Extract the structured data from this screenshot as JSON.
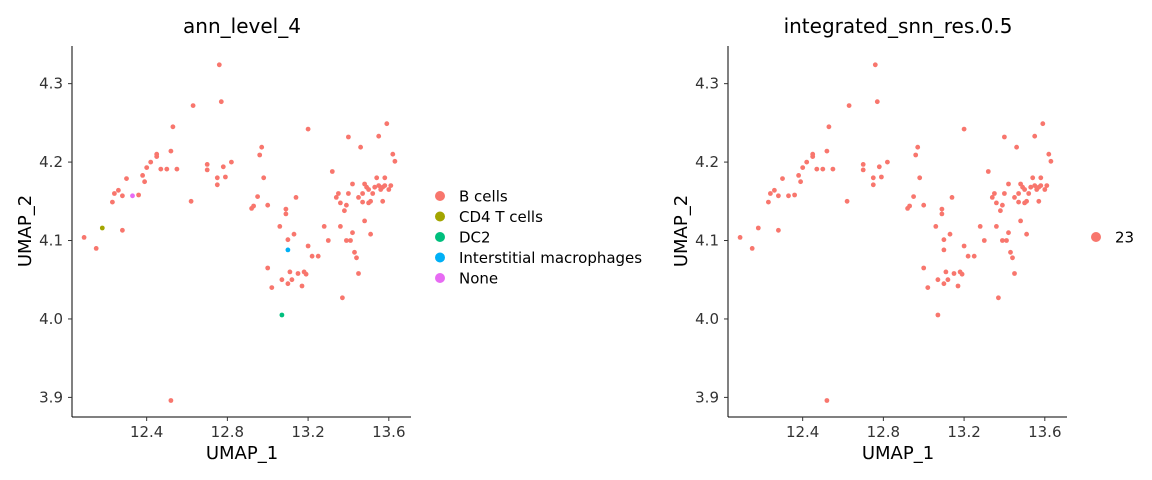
{
  "chart_data": [
    {
      "type": "scatter",
      "title": "ann_level_4",
      "xlabel": "UMAP_1",
      "ylabel": "UMAP_2",
      "xlim": [
        12.03,
        13.71
      ],
      "ylim": [
        3.875,
        4.348
      ],
      "xticks": [
        "12.4",
        "12.8",
        "13.2",
        "13.6"
      ],
      "yticks": [
        "3.9",
        "4.0",
        "4.1",
        "4.2",
        "4.3"
      ],
      "grid": false,
      "legend_position": "right",
      "series": [
        {
          "name": "B cells",
          "color": "#F8766D",
          "points": [
            [
              12.09,
              4.104
            ],
            [
              12.15,
              4.09
            ],
            [
              12.23,
              4.149
            ],
            [
              12.24,
              4.16
            ],
            [
              12.26,
              4.164
            ],
            [
              12.28,
              4.157
            ],
            [
              12.28,
              4.113
            ],
            [
              12.3,
              4.179
            ],
            [
              12.36,
              4.158
            ],
            [
              12.38,
              4.183
            ],
            [
              12.39,
              4.175
            ],
            [
              12.4,
              4.193
            ],
            [
              12.42,
              4.2
            ],
            [
              12.45,
              4.207
            ],
            [
              12.45,
              4.21
            ],
            [
              12.47,
              4.191
            ],
            [
              12.5,
              4.191
            ],
            [
              12.52,
              4.214
            ],
            [
              12.53,
              4.245
            ],
            [
              12.55,
              4.191
            ],
            [
              12.62,
              4.15
            ],
            [
              12.63,
              4.272
            ],
            [
              12.7,
              4.197
            ],
            [
              12.7,
              4.19
            ],
            [
              12.75,
              4.18
            ],
            [
              12.75,
              4.171
            ],
            [
              12.77,
              4.277
            ],
            [
              12.76,
              4.324
            ],
            [
              12.78,
              4.194
            ],
            [
              12.79,
              4.181
            ],
            [
              12.82,
              4.2
            ],
            [
              12.52,
              3.896
            ],
            [
              12.92,
              4.141
            ],
            [
              12.93,
              4.144
            ],
            [
              12.95,
              4.156
            ],
            [
              12.96,
              4.209
            ],
            [
              12.97,
              4.219
            ],
            [
              12.98,
              4.18
            ],
            [
              13.0,
              4.145
            ],
            [
              13.0,
              4.065
            ],
            [
              13.02,
              4.04
            ],
            [
              13.06,
              4.118
            ],
            [
              13.07,
              4.05
            ],
            [
              13.09,
              4.14
            ],
            [
              13.09,
              4.134
            ],
            [
              13.1,
              4.045
            ],
            [
              13.1,
              4.101
            ],
            [
              13.11,
              4.06
            ],
            [
              13.12,
              4.05
            ],
            [
              13.13,
              4.108
            ],
            [
              13.14,
              4.155
            ],
            [
              13.15,
              4.058
            ],
            [
              13.17,
              4.042
            ],
            [
              13.18,
              4.06
            ],
            [
              13.19,
              4.057
            ],
            [
              13.2,
              4.242
            ],
            [
              13.2,
              4.093
            ],
            [
              13.22,
              4.08
            ],
            [
              13.25,
              4.08
            ],
            [
              13.28,
              4.118
            ],
            [
              13.3,
              4.1
            ],
            [
              13.32,
              4.188
            ],
            [
              13.34,
              4.155
            ],
            [
              13.35,
              4.16
            ],
            [
              13.36,
              4.148
            ],
            [
              13.36,
              4.118
            ],
            [
              13.37,
              4.027
            ],
            [
              13.38,
              4.138
            ],
            [
              13.39,
              4.145
            ],
            [
              13.39,
              4.1
            ],
            [
              13.4,
              4.16
            ],
            [
              13.4,
              4.232
            ],
            [
              13.41,
              4.1
            ],
            [
              13.42,
              4.172
            ],
            [
              13.42,
              4.11
            ],
            [
              13.43,
              4.085
            ],
            [
              13.44,
              4.078
            ],
            [
              13.45,
              4.155
            ],
            [
              13.45,
              4.058
            ],
            [
              13.46,
              4.219
            ],
            [
              13.47,
              4.16
            ],
            [
              13.47,
              4.149
            ],
            [
              13.48,
              4.125
            ],
            [
              13.48,
              4.172
            ],
            [
              13.49,
              4.168
            ],
            [
              13.5,
              4.148
            ],
            [
              13.5,
              4.165
            ],
            [
              13.51,
              4.15
            ],
            [
              13.51,
              4.108
            ],
            [
              13.52,
              4.16
            ],
            [
              13.53,
              4.168
            ],
            [
              13.54,
              4.18
            ],
            [
              13.55,
              4.17
            ],
            [
              13.55,
              4.233
            ],
            [
              13.56,
              4.165
            ],
            [
              13.57,
              4.15
            ],
            [
              13.57,
              4.168
            ],
            [
              13.58,
              4.18
            ],
            [
              13.58,
              4.17
            ],
            [
              13.59,
              4.249
            ],
            [
              13.6,
              4.165
            ],
            [
              13.61,
              4.17
            ],
            [
              13.62,
              4.21
            ],
            [
              13.63,
              4.201
            ]
          ]
        },
        {
          "name": "CD4 T cells",
          "color": "#A3A500",
          "points": [
            [
              12.18,
              4.116
            ]
          ]
        },
        {
          "name": "DC2",
          "color": "#00BF7D",
          "points": [
            [
              13.07,
              4.005
            ]
          ]
        },
        {
          "name": "Interstitial macrophages",
          "color": "#00B0F6",
          "points": [
            [
              13.1,
              4.088
            ]
          ]
        },
        {
          "name": "None",
          "color": "#E76BF3",
          "points": [
            [
              12.33,
              4.157
            ]
          ]
        }
      ]
    },
    {
      "type": "scatter",
      "title": "integrated_snn_res.0.5",
      "xlabel": "UMAP_1",
      "ylabel": "UMAP_2",
      "xlim": [
        12.03,
        13.71
      ],
      "ylim": [
        3.875,
        4.348
      ],
      "xticks": [
        "12.4",
        "12.8",
        "13.2",
        "13.6"
      ],
      "yticks": [
        "3.9",
        "4.0",
        "4.1",
        "4.2",
        "4.3"
      ],
      "grid": false,
      "legend_position": "right",
      "series": [
        {
          "name": "23",
          "color": "#F8766D",
          "points": [
            [
              12.09,
              4.104
            ],
            [
              12.15,
              4.09
            ],
            [
              12.23,
              4.149
            ],
            [
              12.24,
              4.16
            ],
            [
              12.26,
              4.164
            ],
            [
              12.28,
              4.157
            ],
            [
              12.28,
              4.113
            ],
            [
              12.3,
              4.179
            ],
            [
              12.36,
              4.158
            ],
            [
              12.38,
              4.183
            ],
            [
              12.39,
              4.175
            ],
            [
              12.4,
              4.193
            ],
            [
              12.42,
              4.2
            ],
            [
              12.45,
              4.207
            ],
            [
              12.45,
              4.21
            ],
            [
              12.47,
              4.191
            ],
            [
              12.5,
              4.191
            ],
            [
              12.52,
              4.214
            ],
            [
              12.53,
              4.245
            ],
            [
              12.55,
              4.191
            ],
            [
              12.62,
              4.15
            ],
            [
              12.63,
              4.272
            ],
            [
              12.7,
              4.197
            ],
            [
              12.7,
              4.19
            ],
            [
              12.75,
              4.18
            ],
            [
              12.75,
              4.171
            ],
            [
              12.77,
              4.277
            ],
            [
              12.76,
              4.324
            ],
            [
              12.78,
              4.194
            ],
            [
              12.79,
              4.181
            ],
            [
              12.82,
              4.2
            ],
            [
              12.52,
              3.896
            ],
            [
              12.92,
              4.141
            ],
            [
              12.93,
              4.144
            ],
            [
              12.95,
              4.156
            ],
            [
              12.96,
              4.209
            ],
            [
              12.97,
              4.219
            ],
            [
              12.98,
              4.18
            ],
            [
              13.0,
              4.145
            ],
            [
              13.0,
              4.065
            ],
            [
              13.02,
              4.04
            ],
            [
              13.06,
              4.118
            ],
            [
              13.07,
              4.05
            ],
            [
              13.09,
              4.14
            ],
            [
              13.09,
              4.134
            ],
            [
              13.1,
              4.045
            ],
            [
              13.1,
              4.101
            ],
            [
              13.11,
              4.06
            ],
            [
              13.12,
              4.05
            ],
            [
              13.13,
              4.108
            ],
            [
              13.14,
              4.155
            ],
            [
              13.15,
              4.058
            ],
            [
              13.17,
              4.042
            ],
            [
              13.18,
              4.06
            ],
            [
              13.19,
              4.057
            ],
            [
              13.2,
              4.242
            ],
            [
              13.2,
              4.093
            ],
            [
              13.22,
              4.08
            ],
            [
              13.25,
              4.08
            ],
            [
              13.28,
              4.118
            ],
            [
              13.3,
              4.1
            ],
            [
              13.32,
              4.188
            ],
            [
              13.34,
              4.155
            ],
            [
              13.35,
              4.16
            ],
            [
              13.36,
              4.148
            ],
            [
              13.36,
              4.118
            ],
            [
              13.37,
              4.027
            ],
            [
              13.38,
              4.138
            ],
            [
              13.39,
              4.145
            ],
            [
              13.39,
              4.1
            ],
            [
              13.4,
              4.16
            ],
            [
              13.4,
              4.232
            ],
            [
              13.41,
              4.1
            ],
            [
              13.42,
              4.172
            ],
            [
              13.42,
              4.11
            ],
            [
              13.43,
              4.085
            ],
            [
              13.44,
              4.078
            ],
            [
              13.45,
              4.155
            ],
            [
              13.45,
              4.058
            ],
            [
              13.46,
              4.219
            ],
            [
              13.47,
              4.16
            ],
            [
              13.47,
              4.149
            ],
            [
              13.48,
              4.125
            ],
            [
              13.48,
              4.172
            ],
            [
              13.49,
              4.168
            ],
            [
              13.5,
              4.148
            ],
            [
              13.5,
              4.165
            ],
            [
              13.51,
              4.15
            ],
            [
              13.51,
              4.108
            ],
            [
              13.52,
              4.16
            ],
            [
              13.53,
              4.168
            ],
            [
              13.54,
              4.18
            ],
            [
              13.55,
              4.17
            ],
            [
              13.55,
              4.233
            ],
            [
              13.56,
              4.165
            ],
            [
              13.57,
              4.15
            ],
            [
              13.57,
              4.168
            ],
            [
              13.58,
              4.18
            ],
            [
              13.58,
              4.17
            ],
            [
              13.59,
              4.249
            ],
            [
              13.6,
              4.165
            ],
            [
              13.61,
              4.17
            ],
            [
              13.62,
              4.21
            ],
            [
              13.63,
              4.201
            ],
            [
              12.18,
              4.116
            ],
            [
              13.07,
              4.005
            ],
            [
              13.1,
              4.088
            ],
            [
              12.33,
              4.157
            ]
          ]
        }
      ]
    }
  ]
}
